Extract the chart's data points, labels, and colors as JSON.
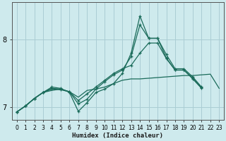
{
  "xlabel": "Humidex (Indice chaleur)",
  "background_color": "#ceeaed",
  "grid_color": "#aacdd4",
  "line_color": "#1a6b5a",
  "xlim": [
    -0.5,
    23.5
  ],
  "ylim": [
    6.82,
    8.55
  ],
  "yticks": [
    7,
    8
  ],
  "xticks": [
    0,
    1,
    2,
    3,
    4,
    5,
    6,
    7,
    8,
    9,
    10,
    11,
    12,
    13,
    14,
    15,
    16,
    17,
    18,
    19,
    20,
    21,
    22,
    23
  ],
  "series": [
    {
      "y": [
        6.93,
        7.02,
        7.13,
        7.22,
        7.25,
        7.27,
        7.23,
        7.15,
        7.25,
        7.27,
        7.3,
        7.35,
        7.4,
        7.42,
        7.42,
        7.43,
        7.44,
        7.45,
        7.46,
        7.47,
        7.47,
        7.48,
        7.49,
        7.28
      ],
      "markers": false
    },
    {
      "y": [
        6.93,
        7.02,
        7.13,
        7.22,
        7.3,
        7.28,
        7.22,
        6.94,
        7.07,
        7.22,
        7.27,
        7.35,
        7.5,
        7.8,
        8.35,
        8.02,
        8.02,
        7.73,
        7.55,
        7.55,
        7.42,
        7.28,
        null,
        null
      ],
      "markers": true
    },
    {
      "y": [
        6.93,
        7.02,
        7.13,
        7.22,
        7.28,
        7.27,
        7.23,
        7.05,
        7.12,
        7.27,
        7.38,
        7.48,
        7.55,
        7.75,
        8.22,
        8.02,
        8.02,
        7.78,
        7.57,
        7.57,
        7.45,
        7.3,
        null,
        null
      ],
      "markers": true
    },
    {
      "y": [
        6.93,
        7.02,
        7.13,
        7.22,
        7.27,
        7.26,
        7.23,
        7.1,
        7.2,
        7.3,
        7.4,
        7.5,
        7.57,
        7.62,
        7.8,
        7.95,
        7.95,
        7.72,
        7.55,
        7.55,
        7.43,
        7.29,
        null,
        null
      ],
      "markers": true
    }
  ]
}
